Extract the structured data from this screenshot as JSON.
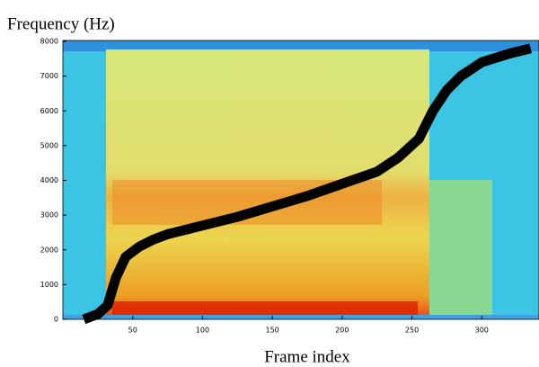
{
  "chart_data": {
    "type": "spectrogram",
    "y_label": "Frequency (Hz)",
    "x_label": "Frame index",
    "x": [
      15,
      25,
      32,
      38,
      45,
      55,
      65,
      75,
      100,
      125,
      150,
      175,
      200,
      225,
      240,
      255,
      265,
      275,
      285,
      300,
      320,
      335
    ],
    "values": [
      0,
      150,
      400,
      1200,
      1800,
      2100,
      2300,
      2450,
      2700,
      2950,
      3250,
      3550,
      3900,
      4250,
      4650,
      5200,
      6000,
      6600,
      7000,
      7400,
      7650,
      7800
    ],
    "color": "#000000",
    "xlim": [
      0,
      341
    ],
    "xticks": [
      50,
      100,
      150,
      200,
      250,
      300
    ],
    "ylim": [
      0,
      8000
    ],
    "yticks": [
      0,
      1000,
      2000,
      3000,
      4000,
      5000,
      6000,
      7000,
      8000
    ],
    "grid": false
  }
}
